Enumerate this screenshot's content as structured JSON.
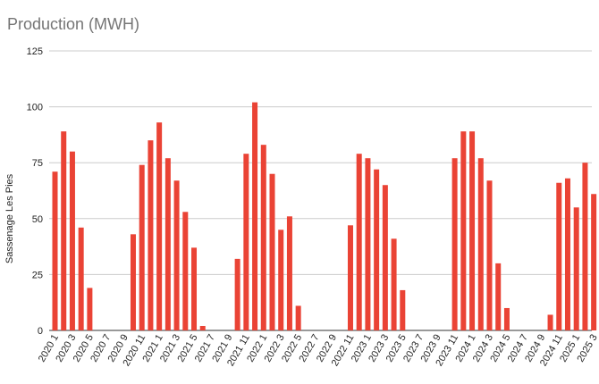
{
  "title": "Production (MWH)",
  "chart_data": {
    "type": "bar",
    "title": "Production (MWH)",
    "xlabel": "",
    "ylabel": "Sassenage Les Pies",
    "ylim": [
      0,
      125
    ],
    "yticks": [
      0,
      25,
      50,
      75,
      100,
      125
    ],
    "grid": true,
    "bar_color": "#ea4335",
    "categories": [
      "2020 1",
      "2020 2",
      "2020 3",
      "2020 4",
      "2020 5",
      "2020 6",
      "2020 7",
      "2020 8",
      "2020 9",
      "2020 10",
      "2020 11",
      "2020 12",
      "2021 1",
      "2021 2",
      "2021 3",
      "2021 4",
      "2021 5",
      "2021 6",
      "2021 7",
      "2021 8",
      "2021 9",
      "2021 10",
      "2021 11",
      "2021 12",
      "2022 1",
      "2022 2",
      "2022 3",
      "2022 4",
      "2022 5",
      "2022 6",
      "2022 7",
      "2022 8",
      "2022 9",
      "2022 10",
      "2022 11",
      "2022 12",
      "2023 1",
      "2023 2",
      "2023 3",
      "2023 4",
      "2023 5",
      "2023 6",
      "2023 7",
      "2023 8",
      "2023 9",
      "2023 10",
      "2023 11",
      "2023 12",
      "2024 1",
      "2024 2",
      "2024 3",
      "2024 4",
      "2024 5",
      "2024 6",
      "2024 7",
      "2024 8",
      "2024 9",
      "2024 10",
      "2024 11",
      "2024 12",
      "2025 1",
      "2025 2",
      "2025 3"
    ],
    "values": [
      71,
      89,
      80,
      46,
      19,
      0,
      0,
      0,
      0,
      43,
      74,
      85,
      93,
      77,
      67,
      53,
      37,
      2,
      0,
      0,
      0,
      32,
      79,
      102,
      83,
      70,
      45,
      51,
      11,
      0,
      0,
      0,
      0,
      0,
      47,
      79,
      77,
      72,
      65,
      41,
      18,
      0,
      0,
      0,
      0,
      0,
      77,
      89,
      89,
      77,
      67,
      30,
      10,
      0,
      0,
      0,
      0,
      7,
      66,
      68,
      55,
      75,
      61
    ],
    "xtick_labels": [
      "2020 1",
      "2020 3",
      "2020 5",
      "2020 7",
      "2020 9",
      "2020 11",
      "2021 1",
      "2021 3",
      "2021 5",
      "2021 7",
      "2021 9",
      "2021 11",
      "2022 1",
      "2022 3",
      "2022 5",
      "2022 7",
      "2022 9",
      "2022 11",
      "2023 1",
      "2023 3",
      "2023 5",
      "2023 7",
      "2023 9",
      "2023 11",
      "2024 1",
      "2024 3",
      "2024 5",
      "2024 7",
      "2024 9",
      "2024 11",
      "2025 1",
      "2025 3"
    ]
  }
}
